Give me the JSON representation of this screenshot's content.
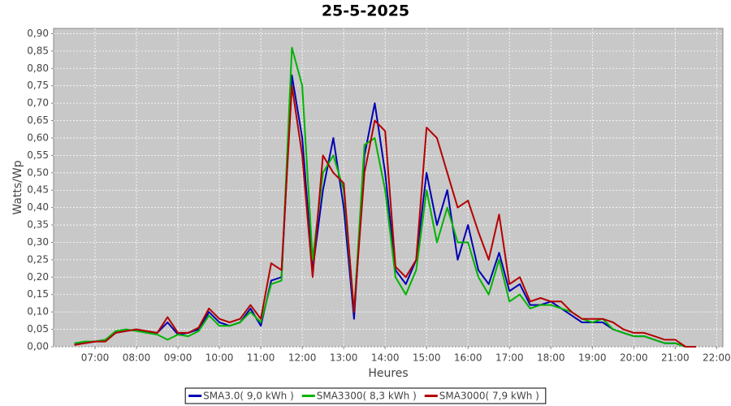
{
  "chart_data": {
    "type": "line",
    "title": "25-5-2025",
    "x_label": "Heures",
    "y_label": "Watts/Wp",
    "xlim": [
      6,
      22.15
    ],
    "xticks": [
      {
        "value": 7,
        "label": "07:00"
      },
      {
        "value": 8,
        "label": "08:00"
      },
      {
        "value": 9,
        "label": "09:00"
      },
      {
        "value": 10,
        "label": "10:00"
      },
      {
        "value": 11,
        "label": "11:00"
      },
      {
        "value": 12,
        "label": "12:00"
      },
      {
        "value": 13,
        "label": "13:00"
      },
      {
        "value": 14,
        "label": "14:00"
      },
      {
        "value": 15,
        "label": "15:00"
      },
      {
        "value": 16,
        "label": "16:00"
      },
      {
        "value": 17,
        "label": "17:00"
      },
      {
        "value": 18,
        "label": "18:00"
      },
      {
        "value": 19,
        "label": "19:00"
      },
      {
        "value": 20,
        "label": "20:00"
      },
      {
        "value": 21,
        "label": "21:00"
      },
      {
        "value": 22,
        "label": "22:00"
      }
    ],
    "ylim": [
      0,
      0.915
    ],
    "yticks": [
      {
        "value": 0,
        "label": "0,00"
      },
      {
        "value": 0.05,
        "label": "0,05"
      },
      {
        "value": 0.1,
        "label": "0,10"
      },
      {
        "value": 0.15,
        "label": "0,15"
      },
      {
        "value": 0.2,
        "label": "0,20"
      },
      {
        "value": 0.25,
        "label": "0,25"
      },
      {
        "value": 0.3,
        "label": "0,30"
      },
      {
        "value": 0.35,
        "label": "0,35"
      },
      {
        "value": 0.4,
        "label": "0,40"
      },
      {
        "value": 0.45,
        "label": "0,45"
      },
      {
        "value": 0.5,
        "label": "0,50"
      },
      {
        "value": 0.55,
        "label": "0,55"
      },
      {
        "value": 0.6,
        "label": "0,60"
      },
      {
        "value": 0.65,
        "label": "0,65"
      },
      {
        "value": 0.7,
        "label": "0,70"
      },
      {
        "value": 0.75,
        "label": "0,75"
      },
      {
        "value": 0.8,
        "label": "0,80"
      },
      {
        "value": 0.85,
        "label": "0,85"
      },
      {
        "value": 0.9,
        "label": "0,90"
      }
    ],
    "grid": true,
    "legend": "bottom",
    "x": [
      6.5,
      6.75,
      7,
      7.25,
      7.5,
      7.75,
      8,
      8.25,
      8.5,
      8.75,
      9,
      9.25,
      9.5,
      9.75,
      10,
      10.25,
      10.5,
      10.75,
      11,
      11.25,
      11.5,
      11.75,
      12,
      12.25,
      12.5,
      12.75,
      13,
      13.25,
      13.5,
      13.75,
      14,
      14.25,
      14.5,
      14.75,
      15,
      15.25,
      15.5,
      15.75,
      16,
      16.25,
      16.5,
      16.75,
      17,
      17.25,
      17.5,
      17.75,
      18,
      18.25,
      18.5,
      18.75,
      19,
      19.25,
      19.5,
      19.75,
      20,
      20.25,
      20.5,
      20.75,
      21,
      21.25,
      21.5
    ],
    "series": [
      {
        "name": "SMA3.0( 9,0 kWh )",
        "color": "#0000b4",
        "values": [
          0.01,
          0.01,
          0.015,
          0.02,
          0.04,
          0.045,
          0.05,
          0.04,
          0.04,
          0.07,
          0.035,
          0.04,
          0.05,
          0.1,
          0.07,
          0.06,
          0.07,
          0.11,
          0.06,
          0.19,
          0.2,
          0.78,
          0.6,
          0.22,
          0.45,
          0.6,
          0.4,
          0.08,
          0.55,
          0.7,
          0.5,
          0.22,
          0.18,
          0.25,
          0.5,
          0.35,
          0.45,
          0.25,
          0.35,
          0.22,
          0.18,
          0.27,
          0.16,
          0.18,
          0.12,
          0.12,
          0.13,
          0.11,
          0.09,
          0.07,
          0.07,
          0.07,
          0.05,
          0.04,
          0.03,
          0.03,
          0.02,
          0.01,
          0.01,
          0,
          0
        ]
      },
      {
        "name": "SMA3300( 8,3 kWh )",
        "color": "#00b400",
        "values": [
          0.01,
          0.015,
          0.015,
          0.02,
          0.045,
          0.05,
          0.045,
          0.04,
          0.035,
          0.02,
          0.035,
          0.03,
          0.045,
          0.09,
          0.06,
          0.06,
          0.07,
          0.1,
          0.07,
          0.18,
          0.19,
          0.86,
          0.75,
          0.25,
          0.5,
          0.55,
          0.45,
          0.1,
          0.58,
          0.6,
          0.45,
          0.2,
          0.15,
          0.22,
          0.45,
          0.3,
          0.4,
          0.3,
          0.3,
          0.2,
          0.15,
          0.25,
          0.13,
          0.15,
          0.11,
          0.12,
          0.12,
          0.11,
          0.1,
          0.08,
          0.07,
          0.08,
          0.05,
          0.04,
          0.03,
          0.03,
          0.02,
          0.01,
          0.01,
          0,
          0
        ]
      },
      {
        "name": "SMA3000( 7,9 kWh )",
        "color": "#b40000",
        "values": [
          0.005,
          0.01,
          0.015,
          0.015,
          0.04,
          0.045,
          0.05,
          0.045,
          0.04,
          0.085,
          0.04,
          0.04,
          0.055,
          0.11,
          0.08,
          0.07,
          0.08,
          0.12,
          0.08,
          0.24,
          0.22,
          0.75,
          0.55,
          0.2,
          0.55,
          0.5,
          0.47,
          0.1,
          0.5,
          0.65,
          0.62,
          0.23,
          0.2,
          0.25,
          0.63,
          0.6,
          0.5,
          0.4,
          0.42,
          0.33,
          0.25,
          0.38,
          0.18,
          0.2,
          0.13,
          0.14,
          0.13,
          0.13,
          0.1,
          0.08,
          0.08,
          0.08,
          0.07,
          0.05,
          0.04,
          0.04,
          0.03,
          0.02,
          0.02,
          0,
          0
        ]
      }
    ]
  }
}
